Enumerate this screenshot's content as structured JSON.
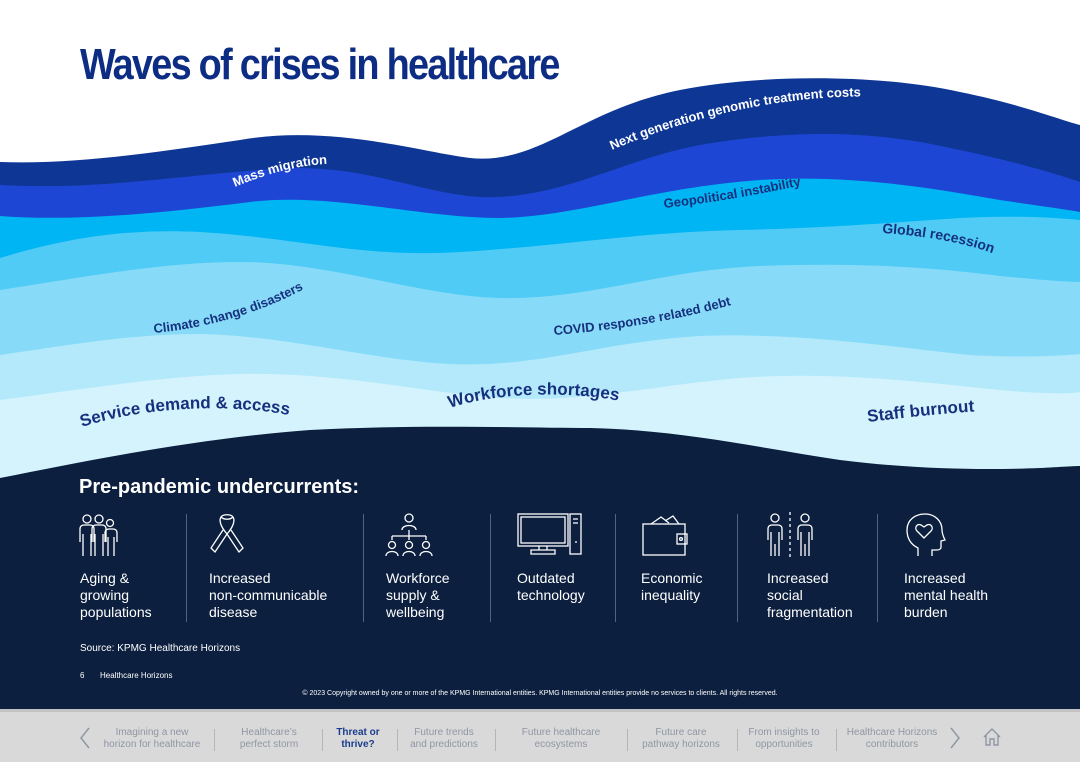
{
  "title": "Waves of crises in healthcare",
  "waves": [
    {
      "label": "Next generation genomic treatment costs"
    },
    {
      "label": "Mass migration"
    },
    {
      "label": "Geopolitical instability"
    },
    {
      "label": "Global recession"
    },
    {
      "label": "Climate change disasters"
    },
    {
      "label": "COVID response related debt"
    },
    {
      "label": "Service demand & access"
    },
    {
      "label": "Workforce shortages"
    },
    {
      "label": "Staff burnout"
    }
  ],
  "undercurrents": {
    "title": "Pre-pandemic undercurrents:",
    "items": [
      {
        "icon": "people-group-icon",
        "label": "Aging &\ngrowing\npopulations"
      },
      {
        "icon": "awareness-ribbon-icon",
        "label": "Increased\nnon-communicable\ndisease"
      },
      {
        "icon": "org-chart-icon",
        "label": "Workforce\nsupply &\nwellbeing"
      },
      {
        "icon": "computer-monitor-icon",
        "label": "Outdated\ntechnology"
      },
      {
        "icon": "wallet-icon",
        "label": "Economic\ninequality"
      },
      {
        "icon": "separated-people-icon",
        "label": "Increased\nsocial\nfragmentation"
      },
      {
        "icon": "head-heart-icon",
        "label": "Increased\nmental health\nburden"
      }
    ]
  },
  "source": "Source: KPMG Healthcare Horizons",
  "footer": {
    "page_number": "6",
    "publication": "Healthcare Horizons",
    "copyright": "© 2023 Copyright owned by one or more of the KPMG International entities. KPMG International entities provide no services to clients. All rights reserved."
  },
  "nav": {
    "items": [
      {
        "label": "Imagining a new\nhorizon for healthcare"
      },
      {
        "label": "Healthcare’s\nperfect storm"
      },
      {
        "label": "Threat or\nthrive?"
      },
      {
        "label": "Future trends\nand predictions"
      },
      {
        "label": "Future healthcare\necosystems"
      },
      {
        "label": "Future care\npathway horizons"
      },
      {
        "label": "From insights to\nopportunities"
      },
      {
        "label": "Healthcare Horizons\ncontributors"
      }
    ]
  },
  "colors": {
    "navy": "#0c2d83",
    "dark_panel": "#0c1f3e",
    "wave_1": "#0e3795",
    "wave_2": "#1e46d4",
    "wave_3": "#00b5f3",
    "wave_4": "#4fcbf5",
    "wave_5": "#87dbf8",
    "wave_6": "#b4e9fb",
    "wave_7": "#d4f3fc"
  }
}
